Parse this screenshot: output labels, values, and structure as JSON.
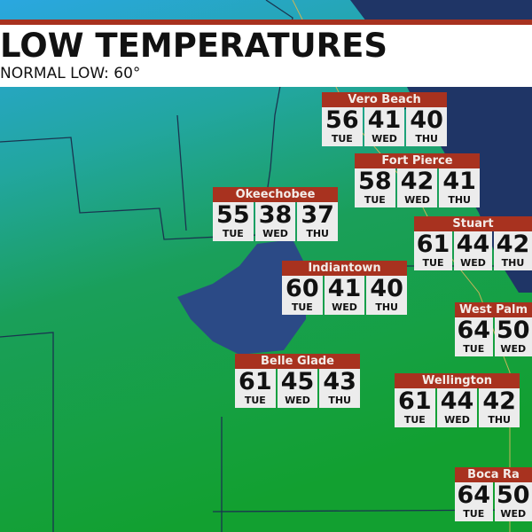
{
  "header": {
    "title": "LOW TEMPERATURES",
    "subtitle": "NORMAL LOW: 60°"
  },
  "colors": {
    "accent": "#a8321f",
    "ocean": "#1f3566",
    "lake": "#2b4a86",
    "land_cold": "#2aa7d8",
    "land_warm": "#14a03a"
  },
  "cities": [
    {
      "name": "Vero Beach",
      "temps": [
        {
          "v": "56",
          "d": "TUE"
        },
        {
          "v": "41",
          "d": "WED"
        },
        {
          "v": "40",
          "d": "THU"
        }
      ]
    },
    {
      "name": "Fort Pierce",
      "temps": [
        {
          "v": "58",
          "d": "TUE"
        },
        {
          "v": "42",
          "d": "WED"
        },
        {
          "v": "41",
          "d": "THU"
        }
      ]
    },
    {
      "name": "Okeechobee",
      "temps": [
        {
          "v": "55",
          "d": "TUE"
        },
        {
          "v": "38",
          "d": "WED"
        },
        {
          "v": "37",
          "d": "THU"
        }
      ]
    },
    {
      "name": "Stuart",
      "temps": [
        {
          "v": "61",
          "d": "TUE"
        },
        {
          "v": "44",
          "d": "WED"
        },
        {
          "v": "42",
          "d": "THU"
        }
      ]
    },
    {
      "name": "Indiantown",
      "temps": [
        {
          "v": "60",
          "d": "TUE"
        },
        {
          "v": "41",
          "d": "WED"
        },
        {
          "v": "40",
          "d": "THU"
        }
      ]
    },
    {
      "name": "West Palm",
      "temps": [
        {
          "v": "64",
          "d": "TUE"
        },
        {
          "v": "50",
          "d": "WED"
        },
        {
          "v": "",
          "d": ""
        }
      ]
    },
    {
      "name": "Belle Glade",
      "temps": [
        {
          "v": "61",
          "d": "TUE"
        },
        {
          "v": "45",
          "d": "WED"
        },
        {
          "v": "43",
          "d": "THU"
        }
      ]
    },
    {
      "name": "Wellington",
      "temps": [
        {
          "v": "61",
          "d": "TUE"
        },
        {
          "v": "44",
          "d": "WED"
        },
        {
          "v": "42",
          "d": "THU"
        }
      ]
    },
    {
      "name": "Boca Ra",
      "temps": [
        {
          "v": "64",
          "d": "TUE"
        },
        {
          "v": "50",
          "d": "WED"
        },
        {
          "v": "",
          "d": ""
        }
      ]
    }
  ]
}
